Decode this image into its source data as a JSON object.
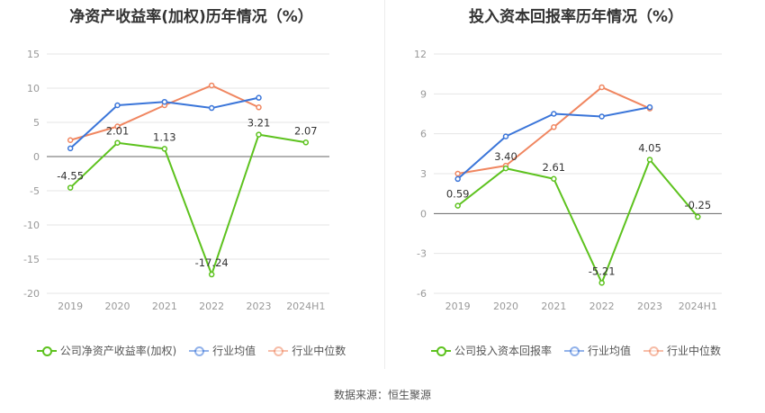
{
  "colors": {
    "company": "#5dc21e",
    "industry_avg": "#3a75d9",
    "industry_median": "#f08660",
    "grid": "#e6e6e6",
    "axis": "#666666",
    "tick": "#999999",
    "label": "#333333"
  },
  "source": "数据来源：恒生聚源",
  "chart_data": [
    {
      "type": "line",
      "title": "净资产收益率(加权)历年情况（%）",
      "categories": [
        "2019",
        "2020",
        "2021",
        "2022",
        "2023",
        "2024H1"
      ],
      "ylim": [
        -20,
        15
      ],
      "yticks": [
        15,
        10,
        5,
        0,
        -5,
        -10,
        -15,
        -20
      ],
      "grid": true,
      "legend_position": "bottom",
      "series": [
        {
          "name": "公司净资产收益率(加权)",
          "key": "company",
          "values": [
            -4.55,
            2.01,
            1.13,
            -17.24,
            3.21,
            2.07
          ],
          "labels": [
            "-4.55",
            "2.01",
            "1.13",
            "-17.24",
            "3.21",
            "2.07"
          ]
        },
        {
          "name": "行业均值",
          "key": "industry_avg",
          "values": [
            1.2,
            7.5,
            8.0,
            7.1,
            8.6,
            null
          ]
        },
        {
          "name": "行业中位数",
          "key": "industry_median",
          "values": [
            2.4,
            4.4,
            7.5,
            10.4,
            7.2,
            null
          ]
        }
      ]
    },
    {
      "type": "line",
      "title": "投入资本回报率历年情况（%）",
      "categories": [
        "2019",
        "2020",
        "2021",
        "2022",
        "2023",
        "2024H1"
      ],
      "ylim": [
        -6,
        12
      ],
      "yticks": [
        12,
        9,
        6,
        3,
        0,
        -3,
        -6
      ],
      "grid": true,
      "legend_position": "bottom",
      "series": [
        {
          "name": "公司投入资本回报率",
          "key": "company",
          "values": [
            0.59,
            3.4,
            2.61,
            -5.21,
            4.05,
            -0.25
          ],
          "labels": [
            "0.59",
            "3.40",
            "2.61",
            "-5.21",
            "4.05",
            "-0.25"
          ]
        },
        {
          "name": "行业均值",
          "key": "industry_avg",
          "values": [
            2.6,
            5.8,
            7.5,
            7.3,
            8.0,
            null
          ]
        },
        {
          "name": "行业中位数",
          "key": "industry_median",
          "values": [
            3.0,
            3.6,
            6.5,
            9.5,
            7.9,
            null
          ]
        }
      ]
    }
  ]
}
